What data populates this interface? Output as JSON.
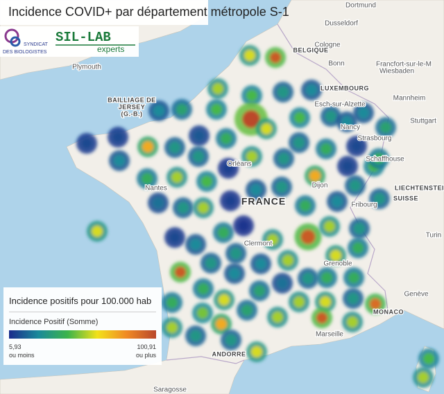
{
  "header": {
    "title": "Incidence COVID+ par département métropole S-1",
    "logo1_line1": "SYNDICAT",
    "logo1_line2": "DES BIOLOGISTES",
    "logo2_line1": "SIL-LAB",
    "logo2_line2": "experts"
  },
  "legend": {
    "title": "Incidence positifs pour 100.000 hab",
    "subtitle": "Incidence Positif (Somme)",
    "min": {
      "value": 5.93,
      "label": "5,93"
    },
    "min_note": "ou moins",
    "max": {
      "value": 100.91,
      "label": "100,91"
    },
    "max_note": "ou plus",
    "colors": [
      "#1a2b8c",
      "#1a8a9a",
      "#3cb44b",
      "#f2e11a",
      "#f08a24",
      "#b8472a"
    ]
  },
  "map": {
    "labels": [
      "BELGIQUE",
      "LUXEMBOURG",
      "FRANCE",
      "SUISSE",
      "ANDORRE",
      "MONACO",
      "LIECHTENSTEIN",
      "BAILLIAGE DE",
      "JERSEY",
      "(G.-B.)",
      "Dusseldorf",
      "Cologne",
      "Bonn",
      "Dortmund",
      "Francfort-sur-le-M",
      "Wiesbaden",
      "Mannheim",
      "Stuttgart",
      "Strasbourg",
      "Schaffhouse",
      "Fribourg",
      "Genève",
      "Turin",
      "Plymouth",
      "Nantes",
      "Orléans",
      "Dijon",
      "Nancy",
      "Clermont",
      "Grenoble",
      "Marseille",
      "Saragosse",
      "Esch-sur-Alzette"
    ],
    "points": [
      60,
      95,
      55,
      45,
      30,
      25,
      25,
      35,
      45,
      100,
      60,
      45,
      30,
      25,
      25,
      35,
      12,
      12,
      75,
      30,
      15,
      40,
      55,
      30,
      30,
      40,
      12,
      25,
      30,
      12,
      45,
      40,
      40,
      55,
      45,
      10,
      25,
      30,
      75,
      30,
      20,
      30,
      55,
      10,
      40,
      25,
      30,
      60,
      12,
      40,
      8,
      55,
      95,
      55,
      30,
      25,
      30,
      25,
      55,
      60,
      40,
      95,
      30,
      25,
      20,
      30,
      40,
      40,
      40,
      40,
      60,
      35,
      35,
      55,
      60,
      30,
      90,
      50,
      55,
      75,
      55,
      95,
      55,
      30,
      30,
      60,
      45,
      55
    ]
  }
}
